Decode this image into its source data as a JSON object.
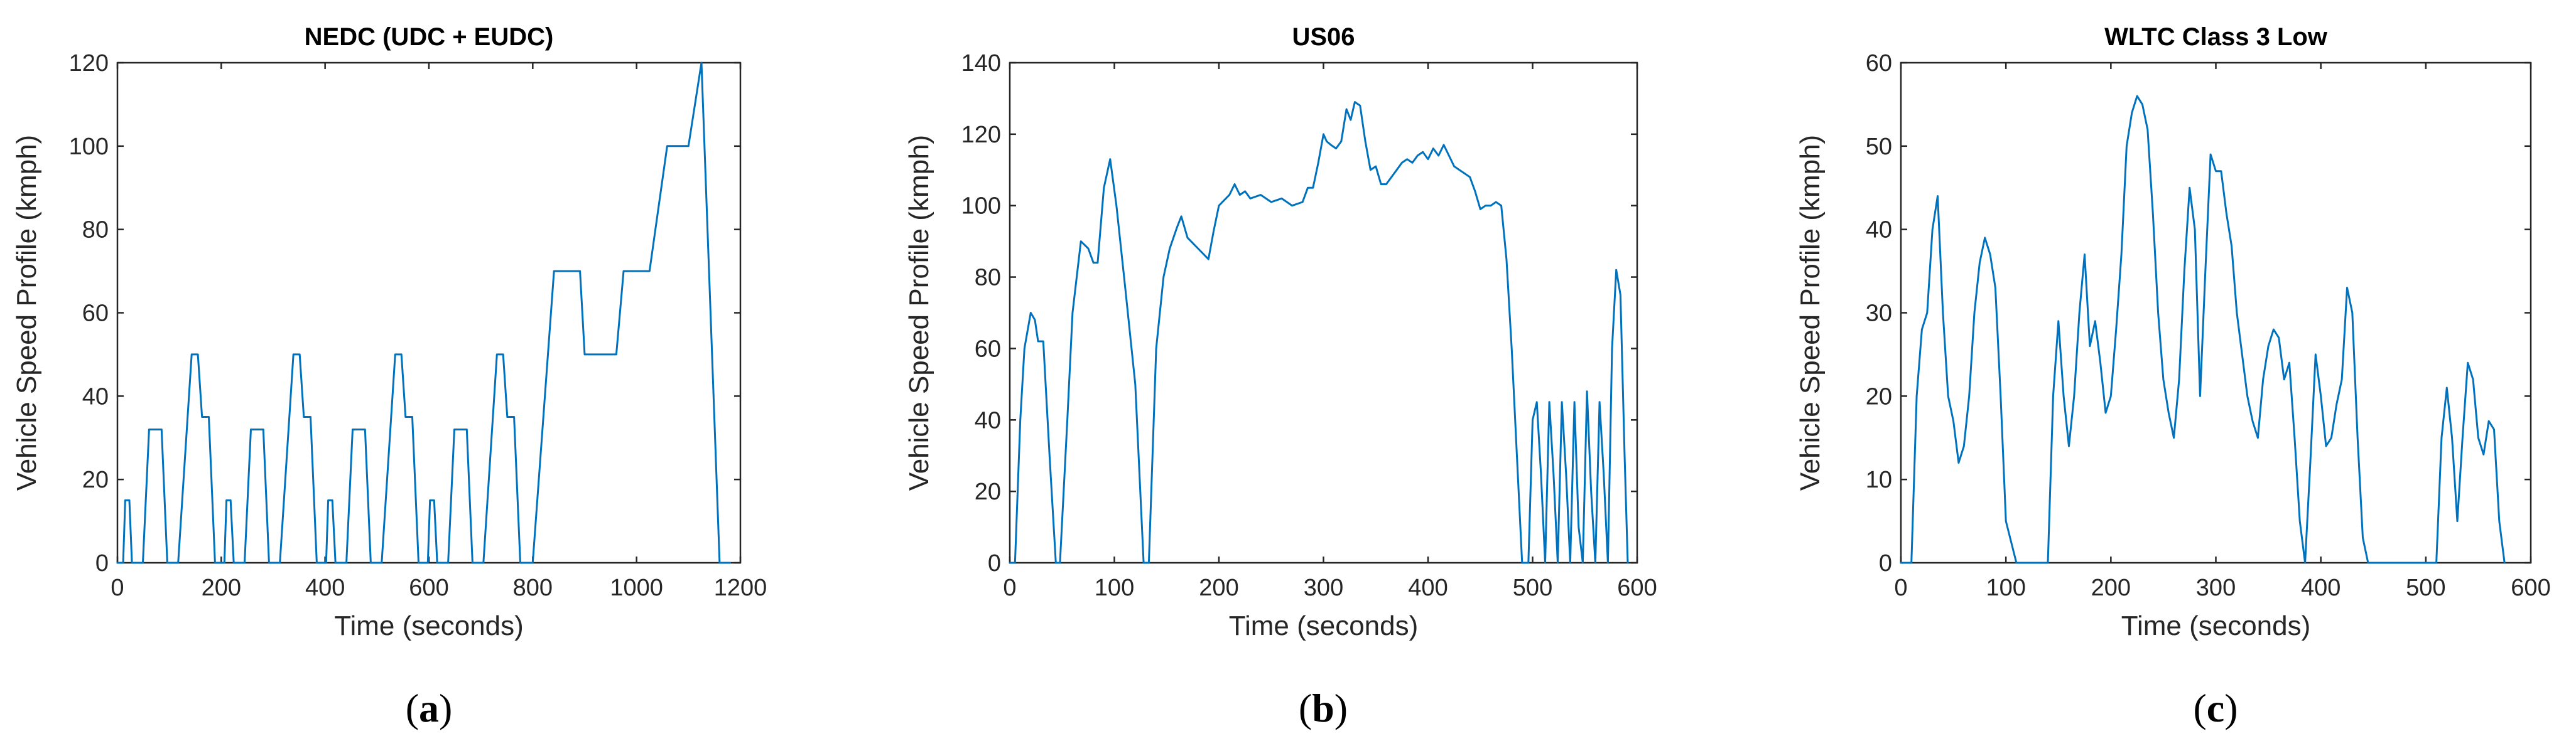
{
  "chart_data": [
    {
      "type": "line",
      "panel_label": "a",
      "title": "NEDC (UDC + EUDC)",
      "xlabel": "Time (seconds)",
      "ylabel": "Vehicle Speed Profile (kmph)",
      "xlim": [
        0,
        1200
      ],
      "ylim": [
        0,
        120
      ],
      "xticks": [
        0,
        200,
        400,
        600,
        800,
        1000,
        1200
      ],
      "yticks": [
        0,
        20,
        40,
        60,
        80,
        100,
        120
      ],
      "grid": false,
      "color": "#0072BD",
      "x": [
        0,
        11,
        15,
        23,
        28,
        49,
        61,
        85,
        96,
        117,
        143,
        155,
        163,
        176,
        188,
        195,
        206,
        210,
        218,
        224,
        245,
        257,
        281,
        292,
        313,
        339,
        351,
        359,
        372,
        384,
        391,
        402,
        406,
        414,
        420,
        441,
        453,
        477,
        488,
        509,
        535,
        547,
        555,
        568,
        580,
        587,
        598,
        602,
        610,
        616,
        637,
        649,
        673,
        684,
        705,
        731,
        743,
        751,
        764,
        776,
        800,
        841,
        891,
        900,
        961,
        975,
        1025,
        1059,
        1100,
        1125,
        1160,
        1180
      ],
      "y": [
        0,
        0,
        15,
        15,
        0,
        0,
        32,
        32,
        0,
        0,
        50,
        50,
        35,
        35,
        0,
        0,
        0,
        15,
        15,
        0,
        0,
        32,
        32,
        0,
        0,
        50,
        50,
        35,
        35,
        0,
        0,
        0,
        15,
        15,
        0,
        0,
        32,
        32,
        0,
        0,
        50,
        50,
        35,
        35,
        0,
        0,
        0,
        15,
        15,
        0,
        0,
        32,
        32,
        0,
        0,
        50,
        50,
        35,
        35,
        0,
        0,
        70,
        70,
        50,
        50,
        70,
        70,
        100,
        100,
        120,
        0,
        0
      ]
    },
    {
      "type": "line",
      "panel_label": "b",
      "title": "US06",
      "xlabel": "Time (seconds)",
      "ylabel": "Vehicle Speed Profile (kmph)",
      "xlim": [
        0,
        600
      ],
      "ylim": [
        0,
        140
      ],
      "xticks": [
        0,
        100,
        200,
        300,
        400,
        500,
        600
      ],
      "yticks": [
        0,
        20,
        40,
        60,
        80,
        100,
        120,
        140
      ],
      "grid": false,
      "color": "#0072BD",
      "x": [
        0,
        5,
        10,
        14,
        20,
        24,
        27,
        32,
        38,
        44,
        48,
        55,
        60,
        68,
        75,
        80,
        84,
        90,
        96,
        102,
        110,
        120,
        128,
        133,
        140,
        147,
        153,
        160,
        164,
        170,
        180,
        190,
        195,
        200,
        210,
        215,
        220,
        225,
        230,
        240,
        250,
        260,
        270,
        280,
        285,
        290,
        295,
        300,
        303,
        307,
        312,
        317,
        322,
        326,
        330,
        335,
        340,
        345,
        350,
        355,
        360,
        365,
        370,
        375,
        380,
        385,
        390,
        395,
        400,
        405,
        410,
        415,
        420,
        425,
        430,
        435,
        440,
        445,
        450,
        455,
        460,
        465,
        470,
        475,
        480,
        485,
        490,
        493,
        496,
        500,
        504,
        508,
        512,
        516,
        520,
        524,
        528,
        532,
        536,
        540,
        544,
        548,
        552,
        556,
        560,
        564,
        568,
        572,
        576,
        580,
        584,
        588,
        591
      ],
      "y": [
        0,
        0,
        40,
        60,
        70,
        68,
        62,
        62,
        30,
        0,
        0,
        40,
        70,
        90,
        88,
        84,
        84,
        105,
        113,
        100,
        78,
        50,
        0,
        0,
        60,
        80,
        88,
        94,
        97,
        91,
        88,
        85,
        93,
        100,
        103,
        106,
        103,
        104,
        102,
        103,
        101,
        102,
        100,
        101,
        105,
        105,
        112,
        120,
        118,
        117,
        116,
        118,
        127,
        124,
        129,
        128,
        118,
        110,
        111,
        106,
        106,
        108,
        110,
        112,
        113,
        112,
        114,
        115,
        113,
        116,
        114,
        117,
        114,
        111,
        110,
        109,
        108,
        104,
        99,
        100,
        100,
        101,
        100,
        85,
        60,
        30,
        0,
        0,
        0,
        40,
        45,
        25,
        0,
        45,
        25,
        0,
        45,
        25,
        0,
        45,
        10,
        0,
        48,
        20,
        0,
        45,
        25,
        0,
        60,
        82,
        75,
        30,
        0
      ]
    },
    {
      "type": "line",
      "panel_label": "c",
      "title": "WLTC Class 3 Low",
      "xlabel": "Time (seconds)",
      "ylabel": "Vehicle Speed Profile (kmph)",
      "xlim": [
        0,
        600
      ],
      "ylim": [
        0,
        60
      ],
      "xticks": [
        0,
        100,
        200,
        300,
        400,
        500,
        600
      ],
      "yticks": [
        0,
        10,
        20,
        30,
        40,
        50,
        60
      ],
      "grid": false,
      "color": "#0072BD",
      "x": [
        0,
        10,
        15,
        20,
        25,
        30,
        35,
        40,
        45,
        50,
        55,
        60,
        65,
        70,
        75,
        80,
        85,
        90,
        95,
        100,
        110,
        140,
        145,
        150,
        155,
        160,
        165,
        170,
        175,
        180,
        185,
        190,
        195,
        200,
        205,
        210,
        215,
        220,
        225,
        230,
        235,
        240,
        245,
        250,
        255,
        260,
        265,
        270,
        275,
        280,
        285,
        290,
        295,
        300,
        305,
        310,
        315,
        320,
        325,
        330,
        335,
        340,
        345,
        350,
        355,
        360,
        365,
        370,
        375,
        380,
        385,
        390,
        395,
        400,
        405,
        410,
        415,
        420,
        425,
        430,
        435,
        440,
        445,
        450,
        510,
        515,
        520,
        525,
        530,
        535,
        540,
        545,
        550,
        555,
        560,
        565,
        570,
        575
      ],
      "y": [
        0,
        0,
        20,
        28,
        30,
        40,
        44,
        30,
        20,
        17,
        12,
        14,
        20,
        30,
        36,
        39,
        37,
        33,
        20,
        5,
        0,
        0,
        20,
        29,
        20,
        14,
        20,
        30,
        37,
        26,
        29,
        24,
        18,
        20,
        28,
        37,
        50,
        54,
        56,
        55,
        52,
        42,
        30,
        22,
        18,
        15,
        22,
        35,
        45,
        40,
        20,
        35,
        49,
        47,
        47,
        42,
        38,
        30,
        25,
        20,
        17,
        15,
        22,
        26,
        28,
        27,
        22,
        24,
        15,
        5,
        0,
        12,
        25,
        20,
        14,
        15,
        19,
        22,
        33,
        30,
        15,
        3,
        0,
        0,
        0,
        15,
        21,
        15,
        5,
        15,
        24,
        22,
        15,
        13,
        17,
        16,
        5,
        0
      ]
    }
  ]
}
